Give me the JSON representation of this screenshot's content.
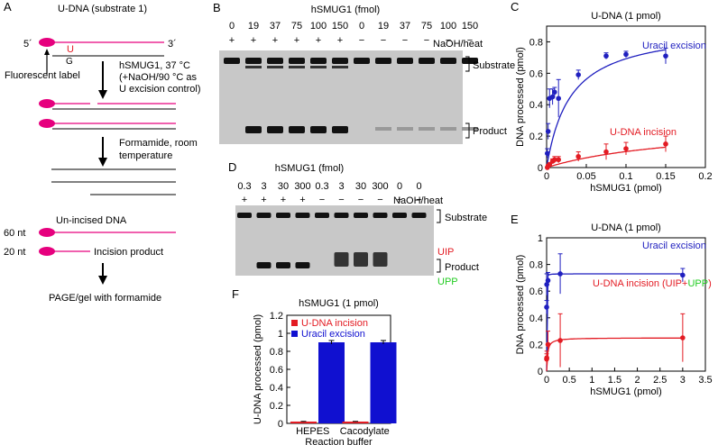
{
  "panel_a": {
    "letter": "A",
    "substrate_label": "U-DNA (substrate 1)",
    "five_prime": "5´",
    "three_prime": "3´",
    "base_u": "U",
    "base_g": "G",
    "fluor_label": "Fluorescent label",
    "step1_line1": "hSMUG1, 37 °C",
    "step1_line2": "(+NaOH/90 °C as",
    "step1_line3": "U excision control)",
    "step2_line1": "Formamide, room",
    "step2_line2": "temperature",
    "unincised_label": "Un-incised DNA",
    "nt60": "60 nt",
    "nt20": "20 nt",
    "incision_label": "Incision product",
    "page_label": "PAGE/gel with formamide",
    "colors": {
      "magenta": "#e6007e",
      "red": "#e31b23"
    }
  },
  "panel_b": {
    "letter": "B",
    "title": "hSMUG1 (fmol)",
    "amounts": [
      "0",
      "19",
      "37",
      "75",
      "100",
      "150",
      "0",
      "19",
      "37",
      "75",
      "100",
      "150"
    ],
    "signs": [
      "+",
      "+",
      "+",
      "+",
      "+",
      "+",
      "−",
      "−",
      "−",
      "−",
      "−",
      "−"
    ],
    "naoh_label": "NaOH/heat",
    "substrate_label": "Substrate",
    "product_label": "Product"
  },
  "panel_d": {
    "letter": "D",
    "title": "hSMUG1 (fmol)",
    "amounts": [
      "0.3",
      "3",
      "30",
      "300",
      "0.3",
      "3",
      "30",
      "300",
      "0",
      "0"
    ],
    "signs": [
      "+",
      "+",
      "+",
      "+",
      "−",
      "−",
      "−",
      "−",
      "+",
      "−"
    ],
    "naoh_label": "NaOH/heat",
    "substrate_label": "Substrate",
    "uip_label": "UIP",
    "product_label": "Product",
    "upp_label": "UPP",
    "colors": {
      "uip": "#e31b23",
      "upp": "#22cc22"
    }
  },
  "chart_data": [
    {
      "id": "C",
      "type": "scatter",
      "title": "U-DNA (1 pmol)",
      "xlabel": "hSMUG1 (pmol)",
      "ylabel": "DNA processed (pmol)",
      "xlim": [
        0,
        0.2
      ],
      "ylim": [
        0,
        0.9
      ],
      "xticks": [
        "0",
        "0.05",
        "0.1",
        "0.15",
        "0.2"
      ],
      "yticks": [
        "0",
        "0.2",
        "0.4",
        "0.6",
        "0.8"
      ],
      "series": [
        {
          "name": "Uracil excision",
          "color": "#1f1fbf",
          "x": [
            0.0009,
            0.0019,
            0.0037,
            0.0075,
            0.01,
            0.015,
            0.04,
            0.075,
            0.1,
            0.15
          ],
          "y": [
            0.09,
            0.23,
            0.44,
            0.45,
            0.48,
            0.44,
            0.59,
            0.71,
            0.72,
            0.71
          ],
          "err": [
            0.03,
            0.05,
            0.06,
            0.05,
            0.03,
            0.12,
            0.03,
            0.02,
            0.02,
            0.05
          ]
        },
        {
          "name": "U-DNA incision",
          "color": "#e31b23",
          "x": [
            0.0009,
            0.0019,
            0.0037,
            0.0075,
            0.01,
            0.015,
            0.04,
            0.075,
            0.1,
            0.15
          ],
          "y": [
            0.0,
            0.01,
            0.02,
            0.04,
            0.05,
            0.05,
            0.07,
            0.1,
            0.12,
            0.15
          ],
          "err": [
            0.005,
            0.01,
            0.01,
            0.015,
            0.02,
            0.02,
            0.03,
            0.05,
            0.04,
            0.05
          ]
        }
      ]
    },
    {
      "id": "E",
      "type": "scatter",
      "title": "U-DNA (1 pmol)",
      "xlabel": "hSMUG1 (pmol)",
      "ylabel": "DNA processed (pmol)",
      "xlim": [
        0,
        3.5
      ],
      "ylim": [
        0,
        1
      ],
      "xticks": [
        "0",
        "0.5",
        "1",
        "1.5",
        "2",
        "2.5",
        "3",
        "3.5"
      ],
      "yticks": [
        "0",
        "0.2",
        "0.4",
        "0.6",
        "0.8",
        "1"
      ],
      "series": [
        {
          "name": "Uracil excision",
          "color": "#1f1fbf",
          "x": [
            0.0003,
            0.003,
            0.03,
            0.3,
            3
          ],
          "y": [
            0.48,
            0.65,
            0.68,
            0.73,
            0.72
          ],
          "err": [
            0.05,
            0.08,
            0.06,
            0.15,
            0.05
          ]
        },
        {
          "name": "U-DNA incision (UIP+UPP)",
          "color": "#e31b23",
          "x": [
            0.0003,
            0.003,
            0.03,
            0.3,
            3
          ],
          "y": [
            0.09,
            0.1,
            0.2,
            0.23,
            0.25
          ],
          "err": [
            0.04,
            0.05,
            0.1,
            0.2,
            0.18
          ]
        }
      ],
      "legend_parts": [
        "U-DNA incision (UIP+",
        "UPP",
        ")"
      ]
    },
    {
      "id": "F",
      "type": "bar",
      "title": "hSMUG1 (1 pmol)",
      "xlabel": "Reaction buffer",
      "ylabel": "U-DNA processed (pmol)",
      "categories": [
        "HEPES",
        "Cacodylate"
      ],
      "ylim": [
        0,
        1.2
      ],
      "yticks": [
        "0",
        "0.2",
        "0.4",
        "0.6",
        "0.8",
        "1",
        "1.2"
      ],
      "series": [
        {
          "name": "U-DNA incision",
          "color": "#e31b23",
          "values": [
            0.02,
            0.02
          ],
          "err": [
            0.002,
            0.002
          ]
        },
        {
          "name": "Uracil excision",
          "color": "#1010d0",
          "values": [
            0.9,
            0.9
          ],
          "err": [
            0.02,
            0.02
          ]
        }
      ]
    }
  ]
}
